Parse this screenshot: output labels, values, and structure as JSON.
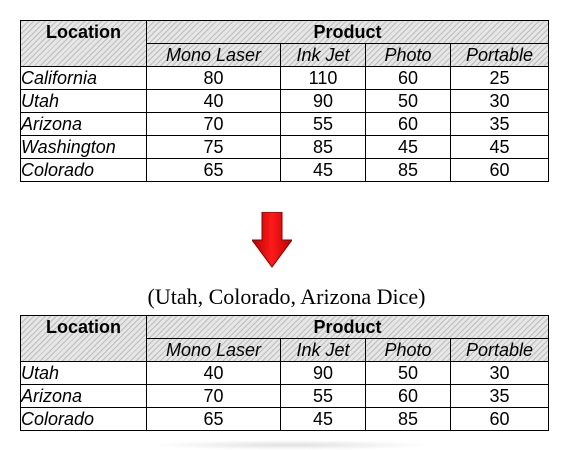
{
  "top_table": {
    "location_header": "Location",
    "product_header": "Product",
    "columns": [
      "Mono Laser",
      "Ink Jet",
      "Photo",
      "Portable"
    ],
    "rows": [
      {
        "label": "California",
        "values": [
          "80",
          "110",
          "60",
          "25"
        ]
      },
      {
        "label": "Utah",
        "values": [
          "40",
          "90",
          "50",
          "30"
        ]
      },
      {
        "label": "Arizona",
        "values": [
          "70",
          "55",
          "60",
          "35"
        ]
      },
      {
        "label": "Washington",
        "values": [
          "75",
          "85",
          "45",
          "45"
        ]
      },
      {
        "label": "Colorado",
        "values": [
          "65",
          "45",
          "85",
          "60"
        ]
      }
    ]
  },
  "arrow": {
    "icon": "down-arrow-icon",
    "color": "#e00000"
  },
  "caption": "(Utah, Colorado, Arizona Dice)",
  "bottom_table": {
    "location_header": "Location",
    "product_header": "Product",
    "columns": [
      "Mono Laser",
      "Ink Jet",
      "Photo",
      "Portable"
    ],
    "rows": [
      {
        "label": "Utah",
        "values": [
          "40",
          "90",
          "50",
          "30"
        ]
      },
      {
        "label": "Arizona",
        "values": [
          "70",
          "55",
          "60",
          "35"
        ]
      },
      {
        "label": "Colorado",
        "values": [
          "65",
          "45",
          "85",
          "60"
        ]
      }
    ]
  }
}
